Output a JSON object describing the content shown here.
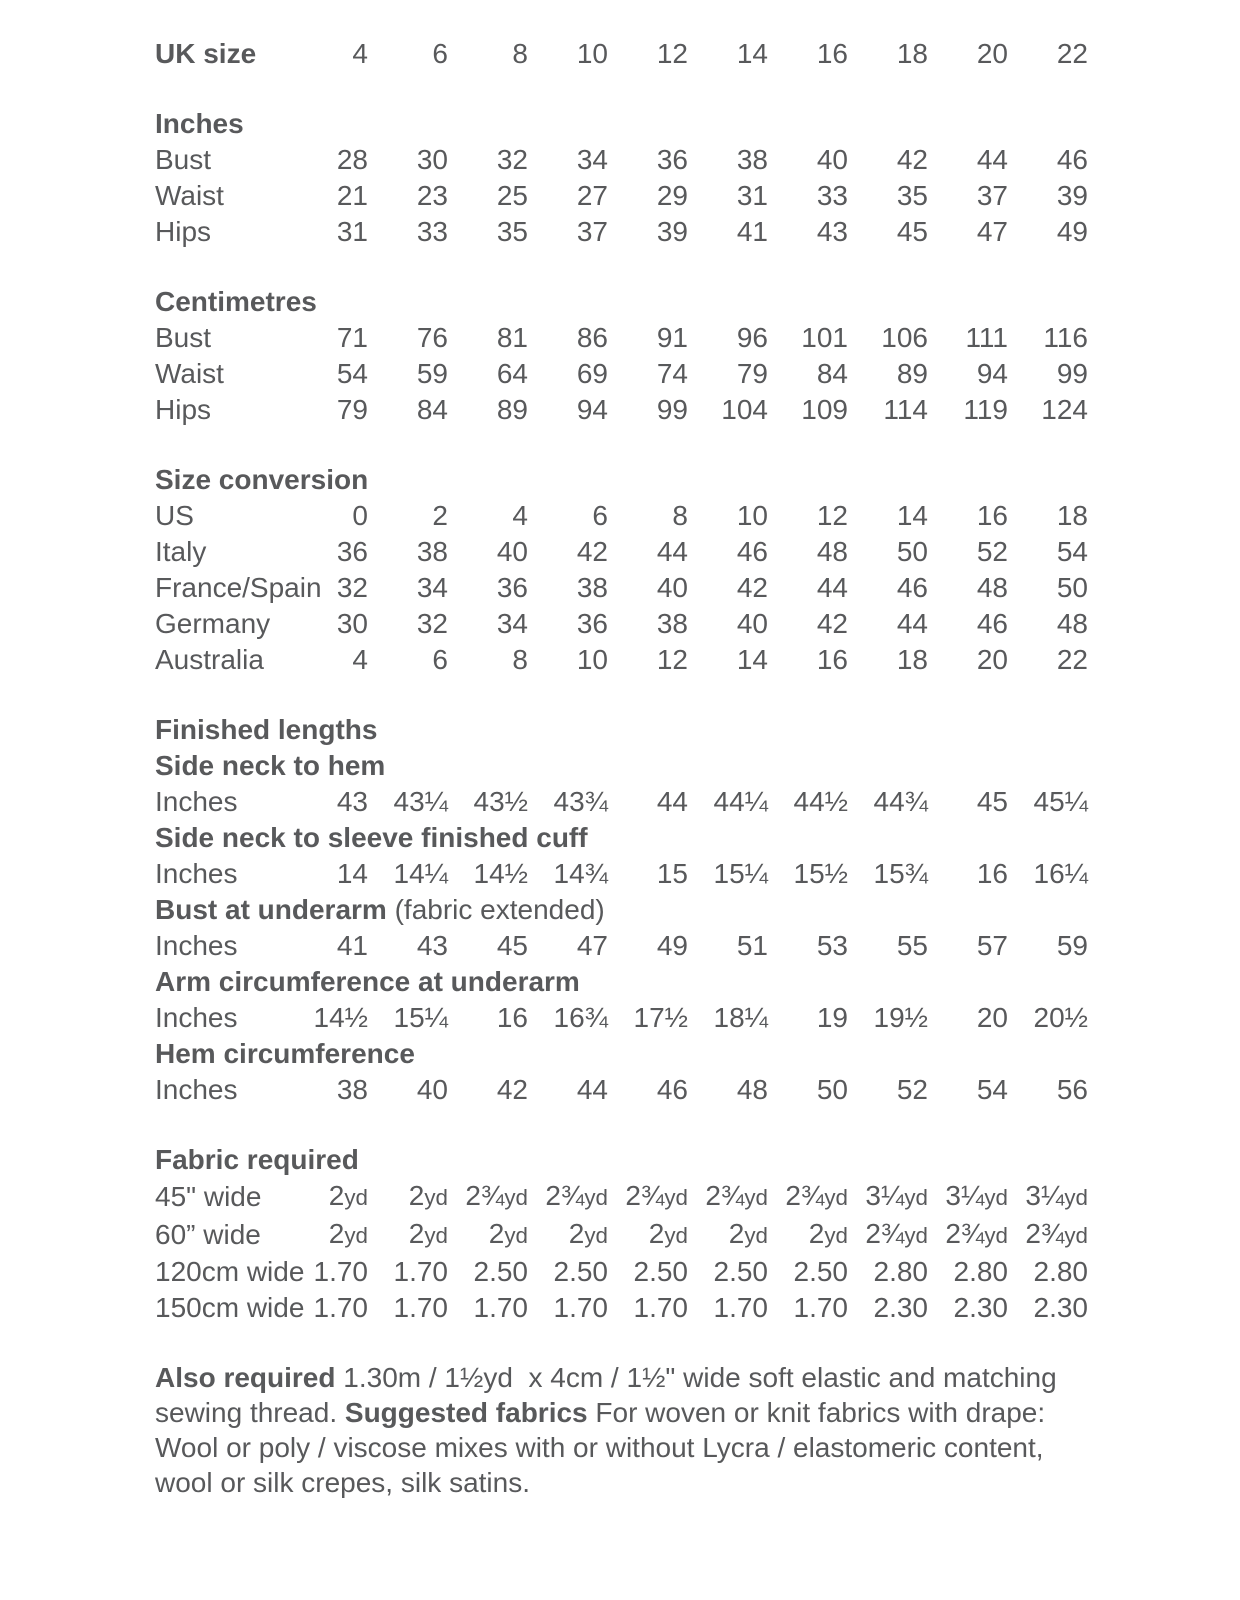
{
  "page": {
    "background": "#ffffff",
    "text_color": "#58595b"
  },
  "size_chart": {
    "header": {
      "label": "UK size",
      "values": [
        "4",
        "6",
        "8",
        "10",
        "12",
        "14",
        "16",
        "18",
        "20",
        "22"
      ]
    },
    "sections": [
      {
        "title": "Inches",
        "rows": [
          {
            "label": "Bust",
            "values": [
              "28",
              "30",
              "32",
              "34",
              "36",
              "38",
              "40",
              "42",
              "44",
              "46"
            ]
          },
          {
            "label": "Waist",
            "values": [
              "21",
              "23",
              "25",
              "27",
              "29",
              "31",
              "33",
              "35",
              "37",
              "39"
            ]
          },
          {
            "label": "Hips",
            "values": [
              "31",
              "33",
              "35",
              "37",
              "39",
              "41",
              "43",
              "45",
              "47",
              "49"
            ]
          }
        ]
      },
      {
        "title": "Centimetres",
        "rows": [
          {
            "label": "Bust",
            "values": [
              "71",
              "76",
              "81",
              "86",
              "91",
              "96",
              "101",
              "106",
              "111",
              "116"
            ]
          },
          {
            "label": "Waist",
            "values": [
              "54",
              "59",
              "64",
              "69",
              "74",
              "79",
              "84",
              "89",
              "94",
              "99"
            ]
          },
          {
            "label": "Hips",
            "values": [
              "79",
              "84",
              "89",
              "94",
              "99",
              "104",
              "109",
              "114",
              "119",
              "124"
            ]
          }
        ]
      },
      {
        "title": "Size conversion",
        "rows": [
          {
            "label": "US",
            "values": [
              "0",
              "2",
              "4",
              "6",
              "8",
              "10",
              "12",
              "14",
              "16",
              "18"
            ]
          },
          {
            "label": "Italy",
            "values": [
              "36",
              "38",
              "40",
              "42",
              "44",
              "46",
              "48",
              "50",
              "52",
              "54"
            ]
          },
          {
            "label": "France/Spain",
            "values": [
              "32",
              "34",
              "36",
              "38",
              "40",
              "42",
              "44",
              "46",
              "48",
              "50"
            ]
          },
          {
            "label": "Germany",
            "values": [
              "30",
              "32",
              "34",
              "36",
              "38",
              "40",
              "42",
              "44",
              "46",
              "48"
            ]
          },
          {
            "label": "Australia",
            "values": [
              "4",
              "6",
              "8",
              "10",
              "12",
              "14",
              "16",
              "18",
              "20",
              "22"
            ]
          }
        ]
      },
      {
        "title": "Finished lengths",
        "rows": [
          {
            "label": "Side neck to hem",
            "heading": true
          },
          {
            "label": "Inches",
            "values": [
              "43",
              "43¼",
              "43½",
              "43¾",
              "44",
              "44¼",
              "44½",
              "44¾",
              "45",
              "45¼"
            ]
          },
          {
            "label": "Side neck to sleeve finished cuff",
            "heading": true
          },
          {
            "label": "Inches",
            "values": [
              "14",
              "14¼",
              "14½",
              "14¾",
              "15",
              "15¼",
              "15½",
              "15¾",
              "16",
              "16¼"
            ]
          },
          {
            "label": "Bust at underarm",
            "suffix": " (fabric extended)",
            "heading": true
          },
          {
            "label": "Inches",
            "values": [
              "41",
              "43",
              "45",
              "47",
              "49",
              "51",
              "53",
              "55",
              "57",
              "59"
            ]
          },
          {
            "label": "Arm circumference at underarm",
            "heading": true
          },
          {
            "label": "Inches",
            "values": [
              "14½",
              "15¼",
              "16",
              "16¾",
              "17½",
              "18¼",
              "19",
              "19½",
              "20",
              "20½"
            ]
          },
          {
            "label": "Hem circumference",
            "heading": true
          },
          {
            "label": "Inches",
            "values": [
              "38",
              "40",
              "42",
              "44",
              "46",
              "48",
              "50",
              "52",
              "54",
              "56"
            ]
          }
        ]
      },
      {
        "title": "Fabric required",
        "rows": [
          {
            "label": "45\" wide",
            "values": [
              "2yd",
              "2yd",
              "2¾yd",
              "2¾yd",
              "2¾yd",
              "2¾yd",
              "2¾yd",
              "3¼yd",
              "3¼yd",
              "3¼yd"
            ]
          },
          {
            "label": "60” wide",
            "values": [
              "2yd",
              "2yd",
              "2yd",
              "2yd",
              "2yd",
              "2yd",
              "2yd",
              "2¾yd",
              "2¾yd",
              "2¾yd"
            ]
          },
          {
            "label": "120cm wide",
            "values": [
              "1.70",
              "1.70",
              "2.50",
              "2.50",
              "2.50",
              "2.50",
              "2.50",
              "2.80",
              "2.80",
              "2.80"
            ]
          },
          {
            "label": "150cm wide",
            "values": [
              "1.70",
              "1.70",
              "1.70",
              "1.70",
              "1.70",
              "1.70",
              "1.70",
              "2.30",
              "2.30",
              "2.30"
            ]
          }
        ]
      }
    ]
  },
  "notes": {
    "line1_bold": "Also required",
    "line1_rest": " 1.30m / 1½yd  x 4cm / 1½\" wide soft elastic and matching",
    "line2_pre": "sewing thread. ",
    "line2_bold": "Suggested fabrics",
    "line2_rest": " For woven or knit fabrics with drape:",
    "line3": "Wool or poly / viscose mixes with or without Lycra / elastomeric content,",
    "line4": "wool or silk crepes, silk satins."
  }
}
